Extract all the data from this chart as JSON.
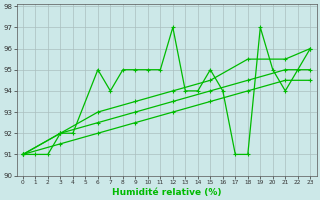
{
  "series1": {
    "x": [
      0,
      1,
      2,
      3,
      4,
      6,
      7,
      8,
      9,
      10,
      11,
      12,
      13,
      14,
      15,
      16,
      17,
      18,
      19,
      20,
      21,
      22,
      23
    ],
    "y": [
      91,
      91,
      91,
      92,
      92,
      95,
      94,
      95,
      95,
      95,
      95,
      97,
      94,
      94,
      95,
      94,
      91,
      91,
      97,
      95,
      94,
      95,
      96
    ]
  },
  "series2": {
    "x": [
      0,
      3,
      6,
      9,
      12,
      15,
      18,
      21,
      23
    ],
    "y": [
      91,
      92,
      93,
      93.5,
      94,
      94.5,
      95.5,
      95.5,
      96
    ]
  },
  "series3": {
    "x": [
      0,
      3,
      6,
      9,
      12,
      15,
      18,
      21,
      23
    ],
    "y": [
      91,
      92,
      92.5,
      93,
      93.5,
      94,
      94.5,
      95,
      95
    ]
  },
  "series4": {
    "x": [
      0,
      3,
      6,
      9,
      12,
      15,
      18,
      21,
      23
    ],
    "y": [
      91,
      91.5,
      92,
      92.5,
      93,
      93.5,
      94,
      94.5,
      94.5
    ]
  },
  "xlim": [
    -0.5,
    23.5
  ],
  "ylim": [
    90,
    98.1
  ],
  "xlabel": "Humidité relative (%)",
  "bg_color": "#cce8e8",
  "grid_color": "#aabfbf",
  "line_color": "#00bb00",
  "xticks": [
    0,
    1,
    2,
    3,
    4,
    5,
    6,
    7,
    8,
    9,
    10,
    11,
    12,
    13,
    14,
    15,
    16,
    17,
    18,
    19,
    20,
    21,
    22,
    23
  ],
  "yticks": [
    90,
    91,
    92,
    93,
    94,
    95,
    96,
    97,
    98
  ]
}
